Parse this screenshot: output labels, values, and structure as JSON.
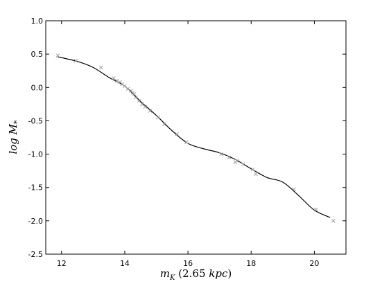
{
  "chart_data": {
    "type": "scatter",
    "xlabel": "m_K (2.65 kpc)",
    "ylabel": "log M_*",
    "xlim": [
      11.5,
      21.0
    ],
    "ylim": [
      -2.5,
      1.0
    ],
    "xticks": [
      12,
      14,
      16,
      18,
      20
    ],
    "yticks": [
      1.0,
      0.5,
      0.0,
      -0.5,
      -1.0,
      -1.5,
      -2.0,
      -2.5
    ],
    "grid": false,
    "legend": "none",
    "colors": {
      "points": "#a0a0a0",
      "line": "#000000"
    },
    "series": [
      {
        "type": "scatter",
        "marker": "x",
        "x": [
          11.88,
          12.45,
          13.25,
          13.65,
          13.75,
          13.85,
          13.92,
          14.0,
          14.1,
          14.2,
          14.25,
          14.3,
          14.35,
          14.45,
          14.55,
          14.65,
          14.8,
          15.05,
          15.25,
          15.65,
          15.95,
          17.05,
          17.3,
          17.5,
          17.55,
          17.75,
          18.05,
          18.15,
          19.35,
          20.05,
          20.6
        ],
        "y": [
          0.48,
          0.4,
          0.3,
          0.14,
          0.1,
          0.08,
          0.05,
          0.02,
          -0.02,
          -0.05,
          -0.08,
          -0.1,
          -0.15,
          -0.2,
          -0.25,
          -0.29,
          -0.35,
          -0.45,
          -0.55,
          -0.7,
          -0.82,
          -1.0,
          -1.05,
          -1.12,
          -1.1,
          -1.15,
          -1.23,
          -1.3,
          -1.53,
          -1.83,
          -2.0
        ]
      },
      {
        "type": "line",
        "x": [
          11.88,
          12.5,
          13.0,
          13.5,
          14.0,
          14.5,
          15.0,
          15.5,
          16.0,
          16.5,
          17.0,
          17.5,
          18.0,
          18.5,
          19.0,
          19.5,
          20.0,
          20.5
        ],
        "y": [
          0.46,
          0.39,
          0.3,
          0.15,
          0.02,
          -0.21,
          -0.42,
          -0.65,
          -0.84,
          -0.92,
          -0.98,
          -1.08,
          -1.22,
          -1.35,
          -1.42,
          -1.62,
          -1.84,
          -1.95
        ]
      }
    ]
  }
}
